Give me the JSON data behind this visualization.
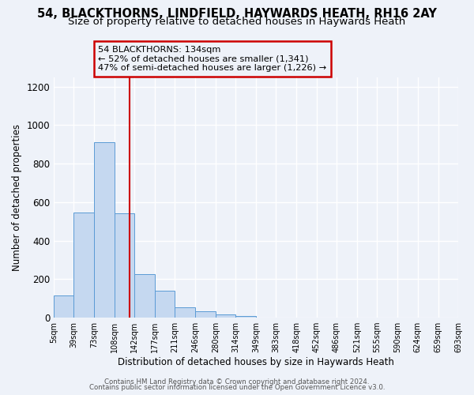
{
  "title": "54, BLACKTHORNS, LINDFIELD, HAYWARDS HEATH, RH16 2AY",
  "subtitle": "Size of property relative to detached houses in Haywards Heath",
  "xlabel": "Distribution of detached houses by size in Haywards Heath",
  "ylabel": "Number of detached properties",
  "footer_line1": "Contains HM Land Registry data © Crown copyright and database right 2024.",
  "footer_line2": "Contains public sector information licensed under the Open Government Licence v3.0.",
  "annotation_line1": "54 BLACKTHORNS: 134sqm",
  "annotation_line2": "← 52% of detached houses are smaller (1,341)",
  "annotation_line3": "47% of semi-detached houses are larger (1,226) →",
  "bin_edges": [
    5,
    39,
    73,
    108,
    142,
    177,
    211,
    246,
    280,
    314,
    349,
    383,
    418,
    452,
    486,
    521,
    555,
    590,
    624,
    659,
    693
  ],
  "bin_heights": [
    115,
    548,
    910,
    542,
    225,
    138,
    55,
    35,
    18,
    8,
    0,
    0,
    0,
    0,
    0,
    0,
    0,
    0,
    0,
    0
  ],
  "bar_color": "#c5d8f0",
  "bar_edge_color": "#5b9bd5",
  "reference_line_x": 134,
  "reference_line_color": "#cc0000",
  "annotation_box_edge_color": "#cc0000",
  "ylim": [
    0,
    1250
  ],
  "background_color": "#eef2f9",
  "grid_color": "#ffffff",
  "title_fontsize": 10.5,
  "subtitle_fontsize": 9.5,
  "tick_label_fontsize": 7.0,
  "ylabel_fontsize": 8.5,
  "xlabel_fontsize": 8.5
}
